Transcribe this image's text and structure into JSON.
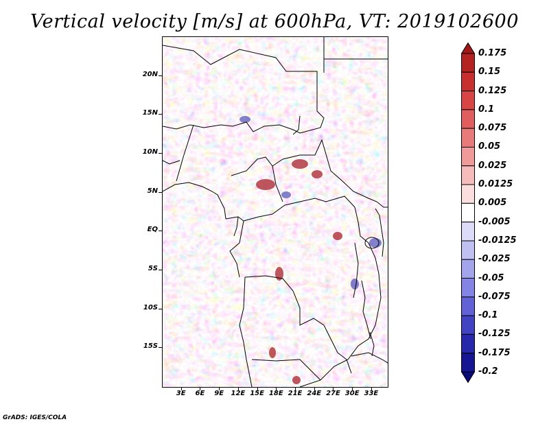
{
  "title": "Vertical velocity [m/s] at 600hPa, VT: 2019102600",
  "credit": "GrADS: IGES/COLA",
  "map": {
    "projection": "lat-lon",
    "lon_range": [
      0,
      35.5
    ],
    "lat_range": [
      -20,
      25
    ],
    "field": "vertical velocity",
    "level": "600hPa",
    "units": "m/s",
    "y_labels": [
      {
        "lat": 20,
        "label": "20N"
      },
      {
        "lat": 15,
        "label": "15N"
      },
      {
        "lat": 10,
        "label": "10N"
      },
      {
        "lat": 5,
        "label": "5N"
      },
      {
        "lat": 0,
        "label": "EQ"
      },
      {
        "lat": -5,
        "label": "5S"
      },
      {
        "lat": -10,
        "label": "10S"
      },
      {
        "lat": -15,
        "label": "15S"
      }
    ],
    "x_labels": [
      {
        "lon": 3,
        "label": "3E"
      },
      {
        "lon": 6,
        "label": "6E"
      },
      {
        "lon": 9,
        "label": "9E"
      },
      {
        "lon": 12,
        "label": "12E"
      },
      {
        "lon": 15,
        "label": "15E"
      },
      {
        "lon": 18,
        "label": "18E"
      },
      {
        "lon": 21,
        "label": "21E"
      },
      {
        "lon": 24,
        "label": "24E"
      },
      {
        "lon": 27,
        "label": "27E"
      },
      {
        "lon": 30,
        "label": "30E"
      },
      {
        "lon": 33,
        "label": "33E"
      }
    ]
  },
  "colorbar": {
    "labels": [
      "0.175",
      "0.15",
      "0.125",
      "0.1",
      "0.075",
      "0.05",
      "0.025",
      "0.0125",
      "0.005",
      "-0.005",
      "-0.0125",
      "-0.025",
      "-0.05",
      "-0.075",
      "-0.1",
      "-0.125",
      "-0.175",
      "-0.2"
    ],
    "colors": [
      "#a01818",
      "#b52222",
      "#c83030",
      "#d84545",
      "#e05e5e",
      "#e87a7a",
      "#f09a9a",
      "#f6bcbc",
      "#fbdede",
      "#ffffff",
      "#dcdcf8",
      "#c0c0f2",
      "#a4a4ec",
      "#8484e4",
      "#6262d6",
      "#4242c4",
      "#2828ac",
      "#161694",
      "#0a0a78"
    ]
  }
}
